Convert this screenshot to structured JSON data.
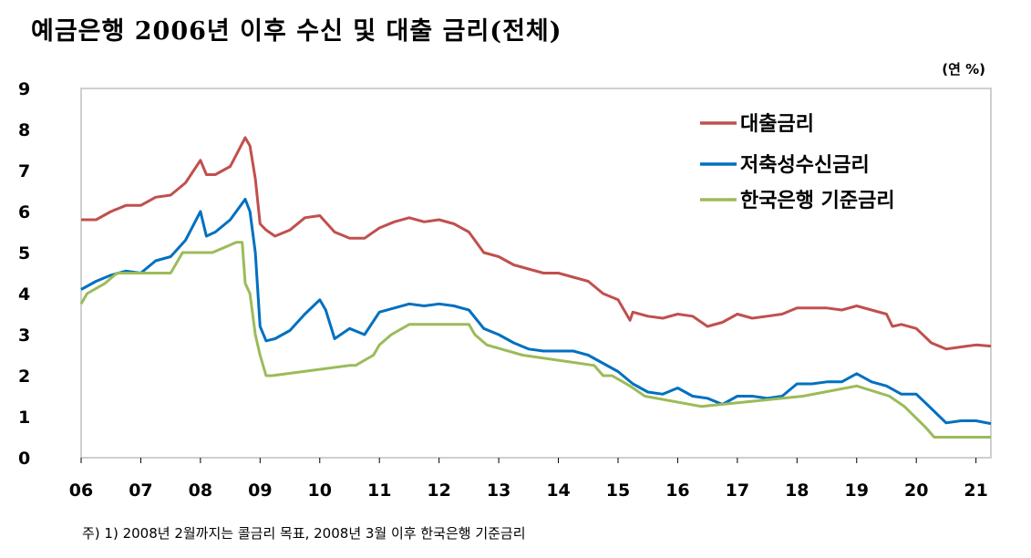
{
  "title": "예금은행 2006년 이후 수신 및 대출 금리(전체)",
  "unit": "(연 %)",
  "footnote": "주) 1) 2008년 2월까지는 콜금리 목표, 2008년 3월 이후 한국은행 기준금리",
  "chart_data": {
    "type": "line",
    "title": "예금은행 2006년 이후 수신 및 대출 금리(전체)",
    "ylabel": "(연 %)",
    "xlabel": "",
    "ylim": [
      0,
      9
    ],
    "xlim": [
      2006.0,
      2021.25
    ],
    "yticks": [
      "0",
      "1",
      "2",
      "3",
      "4",
      "5",
      "6",
      "7",
      "8",
      "9"
    ],
    "xticks": [
      "06",
      "07",
      "08",
      "09",
      "10",
      "11",
      "12",
      "13",
      "14",
      "15",
      "16",
      "17",
      "18",
      "19",
      "20",
      "21"
    ],
    "grid": false,
    "legend_position": "top-right",
    "series": [
      {
        "name": "대출금리",
        "color": "#c0504d",
        "x": [
          2006.0,
          2006.25,
          2006.5,
          2006.75,
          2007.0,
          2007.25,
          2007.5,
          2007.75,
          2008.0,
          2008.1,
          2008.25,
          2008.5,
          2008.75,
          2008.83,
          2008.92,
          2009.0,
          2009.1,
          2009.25,
          2009.5,
          2009.75,
          2010.0,
          2010.25,
          2010.5,
          2010.75,
          2011.0,
          2011.25,
          2011.5,
          2011.75,
          2012.0,
          2012.25,
          2012.5,
          2012.75,
          2013.0,
          2013.25,
          2013.5,
          2013.75,
          2014.0,
          2014.25,
          2014.5,
          2014.75,
          2015.0,
          2015.2,
          2015.25,
          2015.5,
          2015.75,
          2016.0,
          2016.25,
          2016.5,
          2016.75,
          2017.0,
          2017.25,
          2017.5,
          2017.75,
          2018.0,
          2018.25,
          2018.5,
          2018.75,
          2019.0,
          2019.25,
          2019.5,
          2019.6,
          2019.75,
          2020.0,
          2020.25,
          2020.5,
          2020.75,
          2021.0,
          2021.25
        ],
        "values": [
          5.8,
          5.8,
          6.0,
          6.15,
          6.15,
          6.35,
          6.4,
          6.7,
          7.25,
          6.9,
          6.9,
          7.1,
          7.8,
          7.6,
          6.8,
          5.7,
          5.55,
          5.4,
          5.55,
          5.85,
          5.9,
          5.5,
          5.35,
          5.35,
          5.6,
          5.75,
          5.85,
          5.75,
          5.8,
          5.7,
          5.5,
          5.0,
          4.9,
          4.7,
          4.6,
          4.5,
          4.5,
          4.4,
          4.3,
          4.0,
          3.85,
          3.35,
          3.55,
          3.45,
          3.4,
          3.5,
          3.45,
          3.2,
          3.3,
          3.5,
          3.4,
          3.45,
          3.5,
          3.65,
          3.65,
          3.65,
          3.6,
          3.7,
          3.6,
          3.5,
          3.2,
          3.25,
          3.15,
          2.8,
          2.65,
          2.7,
          2.75,
          2.72
        ]
      },
      {
        "name": "저축성수신금리",
        "color": "#0070c0",
        "x": [
          2006.0,
          2006.25,
          2006.5,
          2006.75,
          2007.0,
          2007.25,
          2007.5,
          2007.75,
          2008.0,
          2008.1,
          2008.25,
          2008.5,
          2008.75,
          2008.83,
          2008.92,
          2009.0,
          2009.1,
          2009.25,
          2009.5,
          2009.75,
          2010.0,
          2010.1,
          2010.25,
          2010.5,
          2010.75,
          2011.0,
          2011.25,
          2011.5,
          2011.75,
          2012.0,
          2012.25,
          2012.5,
          2012.75,
          2013.0,
          2013.25,
          2013.5,
          2013.75,
          2014.0,
          2014.25,
          2014.5,
          2014.75,
          2015.0,
          2015.25,
          2015.5,
          2015.75,
          2016.0,
          2016.25,
          2016.5,
          2016.75,
          2017.0,
          2017.25,
          2017.5,
          2017.75,
          2018.0,
          2018.25,
          2018.5,
          2018.75,
          2019.0,
          2019.25,
          2019.5,
          2019.75,
          2020.0,
          2020.25,
          2020.5,
          2020.75,
          2021.0,
          2021.25
        ],
        "values": [
          4.1,
          4.3,
          4.45,
          4.55,
          4.5,
          4.8,
          4.9,
          5.3,
          6.0,
          5.4,
          5.5,
          5.8,
          6.3,
          6.0,
          5.0,
          3.2,
          2.85,
          2.9,
          3.1,
          3.5,
          3.85,
          3.6,
          2.9,
          3.15,
          3.0,
          3.55,
          3.65,
          3.75,
          3.7,
          3.75,
          3.7,
          3.6,
          3.15,
          3.0,
          2.8,
          2.65,
          2.6,
          2.6,
          2.6,
          2.5,
          2.3,
          2.1,
          1.8,
          1.6,
          1.55,
          1.7,
          1.5,
          1.45,
          1.3,
          1.5,
          1.5,
          1.45,
          1.5,
          1.8,
          1.8,
          1.85,
          1.85,
          2.05,
          1.85,
          1.75,
          1.55,
          1.55,
          1.2,
          0.85,
          0.9,
          0.9,
          0.83
        ]
      },
      {
        "name": "한국은행 기준금리",
        "color": "#9bbb59",
        "x": [
          2006.0,
          2006.1,
          2006.4,
          2006.6,
          2006.75,
          2007.5,
          2007.7,
          2008.0,
          2008.2,
          2008.6,
          2008.7,
          2008.75,
          2008.83,
          2008.92,
          2009.0,
          2009.1,
          2009.2,
          2010.5,
          2010.6,
          2010.9,
          2011.0,
          2011.2,
          2011.5,
          2012.5,
          2012.6,
          2012.8,
          2013.4,
          2014.6,
          2014.75,
          2014.9,
          2015.2,
          2015.45,
          2016.4,
          2018.1,
          2019.0,
          2019.55,
          2019.8,
          2020.15,
          2020.3,
          2021.25
        ],
        "values": [
          3.75,
          4.0,
          4.25,
          4.5,
          4.5,
          4.5,
          5.0,
          5.0,
          5.0,
          5.25,
          5.25,
          4.25,
          4.0,
          3.0,
          2.5,
          2.0,
          2.0,
          2.25,
          2.25,
          2.5,
          2.75,
          3.0,
          3.25,
          3.25,
          3.0,
          2.75,
          2.5,
          2.25,
          2.0,
          2.0,
          1.75,
          1.5,
          1.25,
          1.5,
          1.75,
          1.5,
          1.25,
          0.75,
          0.5,
          0.5
        ]
      }
    ]
  }
}
